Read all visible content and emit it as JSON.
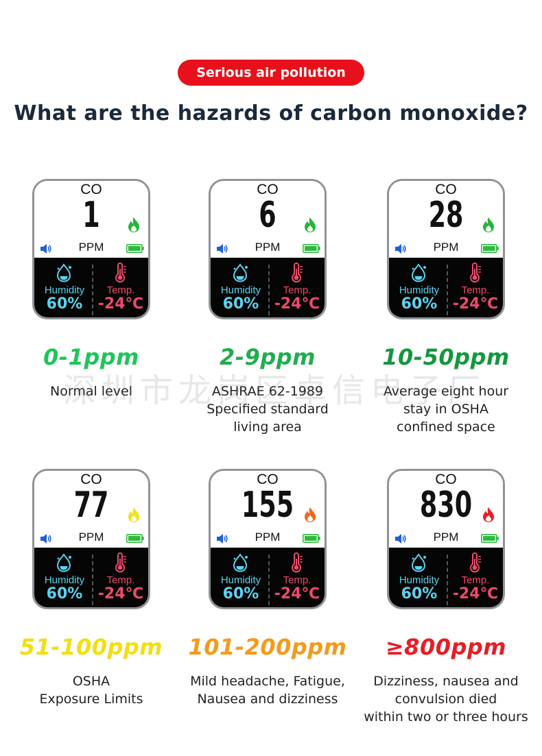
{
  "badge": "Serious air pollution",
  "headline": "What are the hazards of carbon monoxide?",
  "watermark": "深圳市龙岗区卓信电子厂",
  "device": {
    "gas": "CO",
    "unit": "PPM",
    "humidity_label": "Humidity",
    "humidity_value": "60%",
    "temp_label": "Temp.",
    "temp_value": "-24℃"
  },
  "levels": [
    {
      "reading": "1",
      "flame_color": "#27b43a",
      "range": "0-1ppm",
      "range_color": "#1ec55a",
      "desc": [
        "Normal level"
      ]
    },
    {
      "reading": "6",
      "flame_color": "#27b43a",
      "range": "2-9ppm",
      "range_color": "#21ad4e",
      "desc": [
        "ASHRAE 62-1989",
        "Specified standard",
        "living area"
      ]
    },
    {
      "reading": "28",
      "flame_color": "#27b43a",
      "range": "10-50ppm",
      "range_color": "#15963f",
      "desc": [
        "Average eight hour",
        "stay in OSHA",
        "confined space"
      ]
    },
    {
      "reading": "77",
      "flame_color": "#f3e21d",
      "range": "51-100ppm",
      "range_color": "#f2df12",
      "desc": [
        "OSHA",
        "Exposure Limits"
      ]
    },
    {
      "reading": "155",
      "flame_color": "#f0661a",
      "range": "101-200ppm",
      "range_color": "#f49a1c",
      "desc": [
        "Mild headache, Fatigue,",
        "Nausea and dizziness"
      ]
    },
    {
      "reading": "830",
      "flame_color": "#e81f22",
      "range": "≥800ppm",
      "range_color": "#ea1c24",
      "desc": [
        "Dizziness, nausea and",
        "convulsion died",
        "within two or three hours"
      ]
    }
  ]
}
